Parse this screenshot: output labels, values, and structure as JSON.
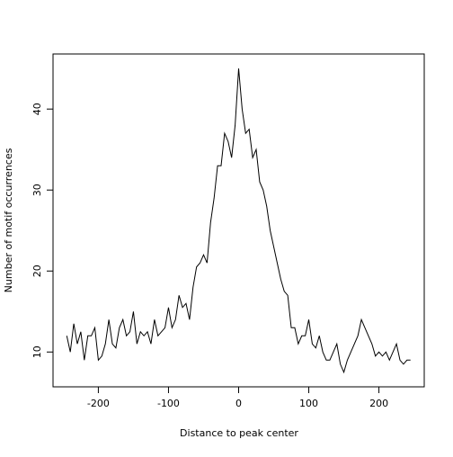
{
  "chart_data": {
    "type": "line",
    "x_label": "Distance to peak center",
    "y_label": "Number of motif occurrences",
    "x": [
      -245,
      -240,
      -235,
      -230,
      -225,
      -220,
      -215,
      -210,
      -205,
      -200,
      -195,
      -190,
      -185,
      -180,
      -175,
      -170,
      -165,
      -160,
      -155,
      -150,
      -145,
      -140,
      -135,
      -130,
      -125,
      -120,
      -115,
      -110,
      -105,
      -100,
      -95,
      -90,
      -85,
      -80,
      -75,
      -70,
      -65,
      -60,
      -55,
      -50,
      -45,
      -40,
      -35,
      -30,
      -25,
      -20,
      -15,
      -10,
      -5,
      0,
      5,
      10,
      15,
      20,
      25,
      30,
      35,
      40,
      45,
      50,
      55,
      60,
      65,
      70,
      75,
      80,
      85,
      90,
      95,
      100,
      105,
      110,
      115,
      120,
      125,
      130,
      135,
      140,
      145,
      150,
      155,
      160,
      165,
      170,
      175,
      180,
      185,
      190,
      195,
      200,
      205,
      210,
      215,
      220,
      225,
      230,
      235,
      240,
      245
    ],
    "series": [
      {
        "color": "#000000",
        "values": [
          12,
          10,
          13.5,
          11,
          12.5,
          9,
          12,
          12,
          13,
          9,
          9.5,
          11,
          14,
          11,
          10.5,
          13,
          14,
          12,
          12.5,
          15,
          11,
          12.5,
          12,
          12.5,
          11,
          14,
          12,
          12.5,
          13,
          15.5,
          13,
          14,
          17,
          15.5,
          16,
          14,
          18,
          20.5,
          21,
          22,
          21,
          26,
          29,
          33,
          33,
          37,
          36,
          34,
          38,
          45,
          40,
          37,
          37.5,
          34,
          35,
          31,
          30,
          28,
          25,
          23,
          21,
          19,
          17.5,
          17,
          13,
          13,
          11,
          12,
          12,
          14,
          11,
          10.5,
          12,
          10,
          9,
          9,
          10,
          11,
          8.5,
          7.5,
          9,
          10,
          11,
          12,
          14,
          13,
          12,
          11,
          9.5,
          10,
          9.5,
          10,
          9,
          10,
          11,
          9,
          8.5,
          9,
          9
        ]
      }
    ],
    "xlim": [
      -264.6,
      264.6
    ],
    "ylim": [
      5.7,
      46.8
    ],
    "xticks": [
      -200,
      -100,
      0,
      100,
      200
    ],
    "yticks": [
      10,
      20,
      30,
      40
    ]
  }
}
